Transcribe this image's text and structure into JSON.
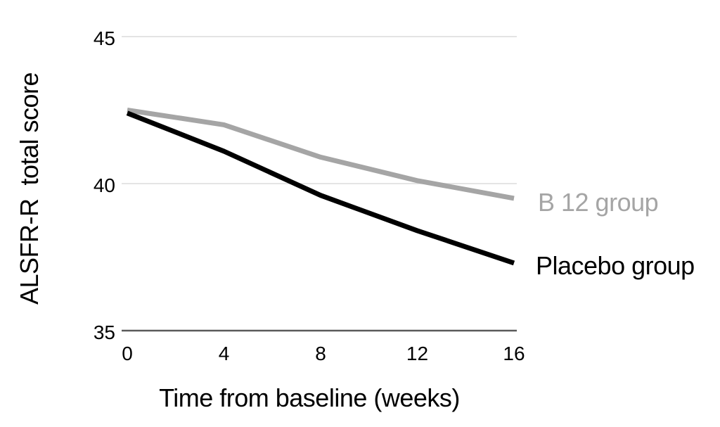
{
  "chart_data": {
    "type": "line",
    "title": "",
    "xlabel": "Time from baseline (weeks)",
    "ylabel": "ALSFR-R  total score",
    "x": [
      0,
      4,
      8,
      12,
      16
    ],
    "xtick_labels": [
      "0",
      "4",
      "8",
      "12",
      "16"
    ],
    "yticks": [
      45,
      40,
      35
    ],
    "ytick_labels": [
      "45",
      "40",
      "35"
    ],
    "xlim": [
      0,
      16
    ],
    "ylim": [
      35,
      45
    ],
    "grid": "horizontal light gridlines at 45 and 40; darker baseline at 35; no vertical gridlines",
    "legend_position": "right of line endpoints, label colored like its line",
    "series": [
      {
        "name": "B 12 group",
        "color": "#a5a5a5",
        "values": [
          42.5,
          42.0,
          40.9,
          40.1,
          39.5
        ]
      },
      {
        "name": "Placebo group",
        "color": "#000000",
        "values": [
          42.4,
          41.1,
          39.6,
          38.4,
          37.3
        ]
      }
    ]
  },
  "colors": {
    "background": "#ffffff",
    "gridline": "#dcdcdc",
    "axis_line": "#5a5a5a",
    "text": "#000000"
  }
}
